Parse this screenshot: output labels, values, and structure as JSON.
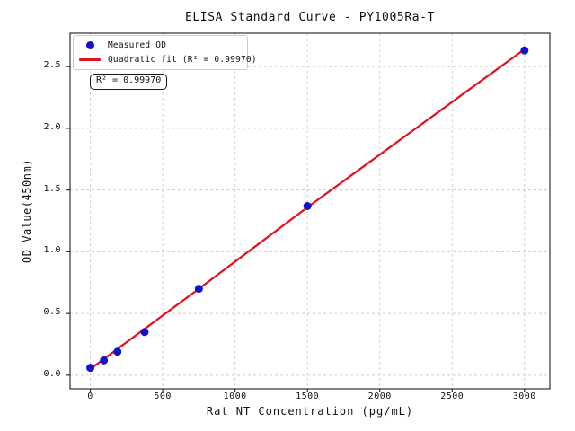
{
  "colors": {
    "point_blue": "#1212cc",
    "line_red": "#e1141e",
    "grid": "#cccccc",
    "spine": "#2e2e2e",
    "text": "#111111",
    "background": "#ffffff"
  },
  "chart_data": {
    "type": "scatter",
    "title": "ELISA Standard Curve - PY1005Ra-T",
    "xlabel": "Rat NT Concentration (pg/mL)",
    "ylabel": "OD Value(450nm)",
    "xlim": [
      -140,
      3175
    ],
    "ylim": [
      -0.11,
      2.77
    ],
    "xticks": [
      0,
      500,
      1000,
      1500,
      2000,
      2500,
      3000
    ],
    "xtick_labels": [
      "0",
      "500",
      "1000",
      "1500",
      "2000",
      "2500",
      "3000"
    ],
    "yticks": [
      0,
      0.5,
      1.0,
      1.5,
      2.0,
      2.5
    ],
    "ytick_labels": [
      "0.0",
      "0.5",
      "1.0",
      "1.5",
      "2.0",
      "2.5"
    ],
    "grid": true,
    "grid_linestyle": "dashed",
    "legend": {
      "position": "upper left",
      "entries": [
        "Measured OD",
        "Quadratic fit (R² = 0.99970)"
      ]
    },
    "annotation": "R² = 0.99970",
    "r_squared": "0.99970",
    "series": [
      {
        "name": "Measured OD",
        "type": "scatter",
        "color": "#1212cc",
        "x": [
          0,
          93.75,
          187.5,
          375,
          750,
          1500,
          3000
        ],
        "y": [
          0.06,
          0.12,
          0.19,
          0.35,
          0.7,
          1.37,
          2.63
        ]
      },
      {
        "name": "Quadratic fit",
        "type": "line",
        "color": "#e1141e",
        "x": [
          0,
          750,
          1500,
          2250,
          3000
        ],
        "y": [
          0.05,
          0.7,
          1.36,
          2.0,
          2.64
        ]
      }
    ]
  }
}
